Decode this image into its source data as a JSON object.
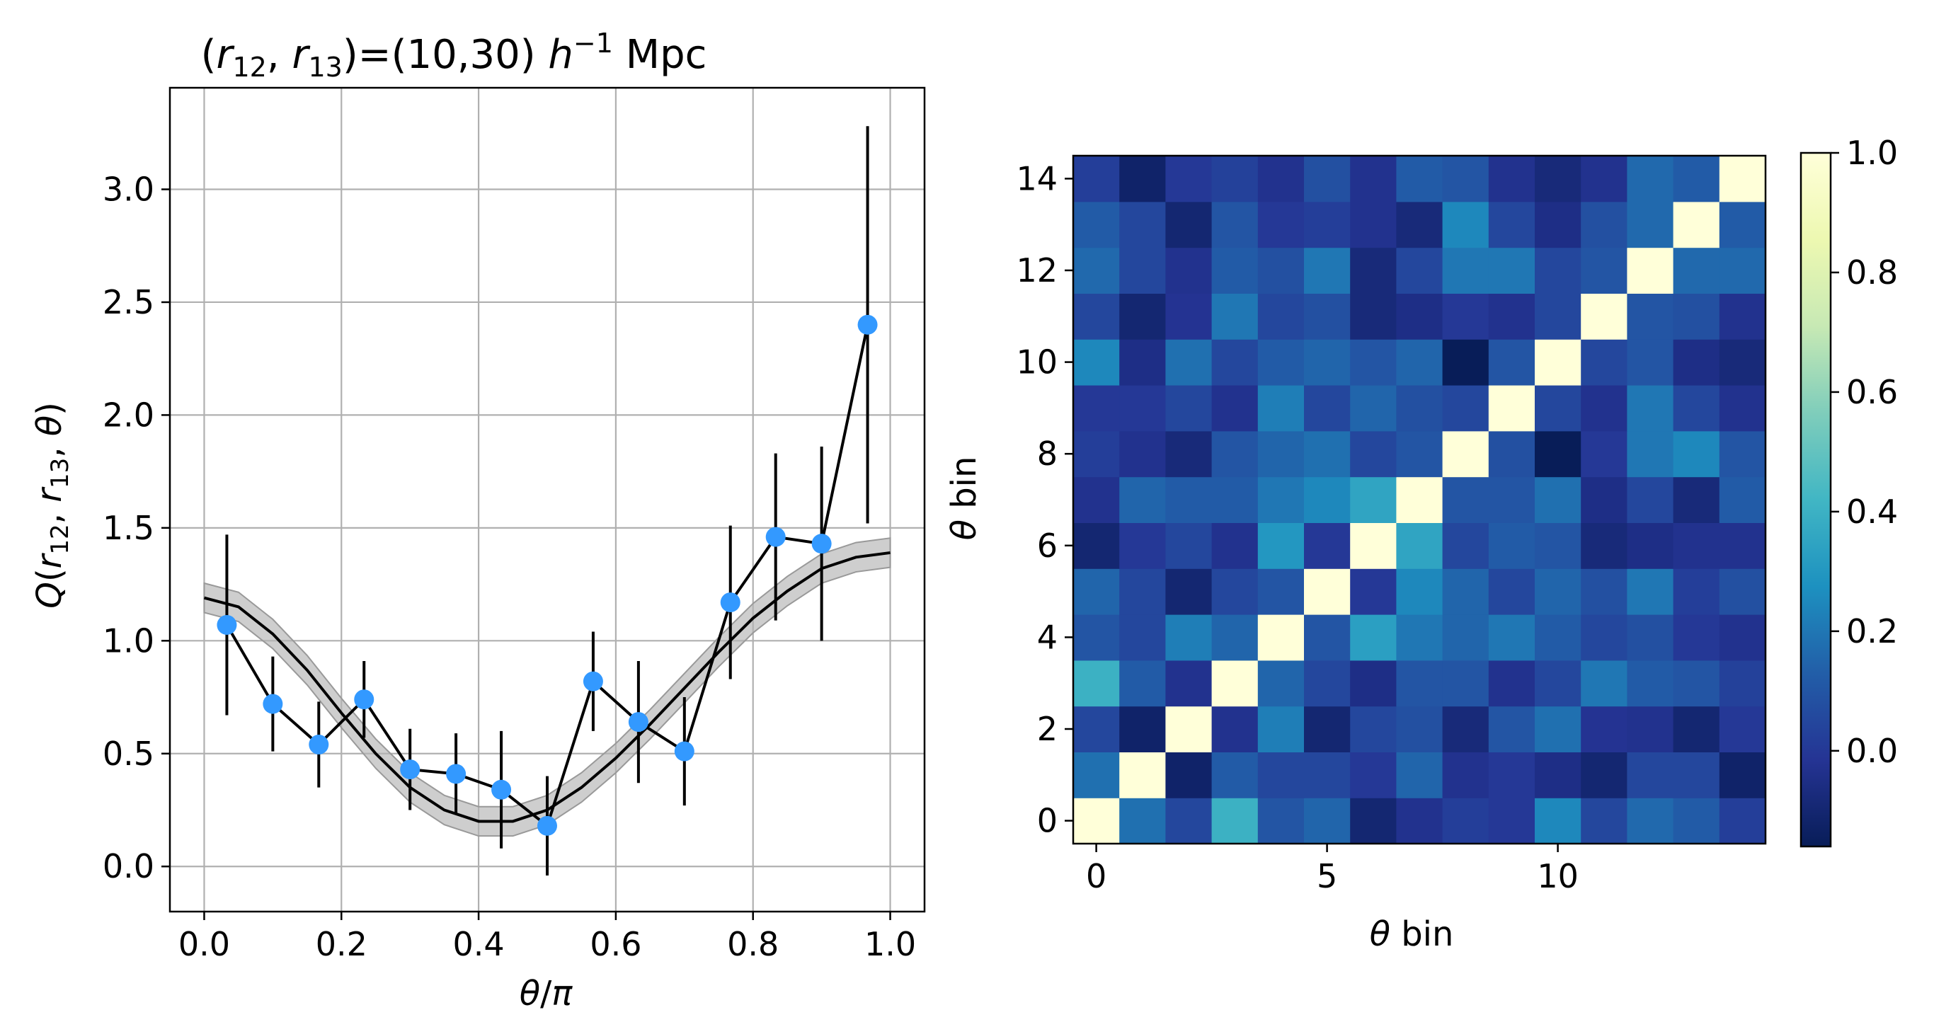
{
  "figure": {
    "colors": {
      "points": "#3399ff",
      "line": "#000000",
      "band": "#b3b3b3",
      "grid": "#b0b0b0",
      "colormap": "YlGnBu_r"
    }
  },
  "chart_data": [
    {
      "type": "line",
      "title": "(r12,r13)=(10,30) h^-1 Mpc",
      "xlabel": "θ/π",
      "ylabel": "Q(r12, r13, θ)",
      "xlim": [
        -0.05,
        1.05
      ],
      "ylim": [
        -0.2,
        3.45
      ],
      "grid": true,
      "xticks": [
        0.0,
        0.2,
        0.4,
        0.6,
        0.8,
        1.0
      ],
      "xtick_labels": [
        "0.0",
        "0.2",
        "0.4",
        "0.6",
        "0.8",
        "1.0"
      ],
      "yticks": [
        0.0,
        0.5,
        1.0,
        1.5,
        2.0,
        2.5,
        3.0
      ],
      "ytick_labels": [
        "0.0",
        "0.5",
        "1.0",
        "1.5",
        "2.0",
        "2.5",
        "3.0"
      ],
      "series": [
        {
          "kind": "points_with_errorbars",
          "x": [
            0.033,
            0.1,
            0.167,
            0.233,
            0.3,
            0.367,
            0.433,
            0.5,
            0.567,
            0.633,
            0.7,
            0.767,
            0.833,
            0.9,
            0.967
          ],
          "y": [
            1.07,
            0.72,
            0.54,
            0.74,
            0.43,
            0.41,
            0.34,
            0.18,
            0.82,
            0.64,
            0.51,
            1.17,
            1.46,
            1.43,
            2.4
          ],
          "yerr": [
            0.4,
            0.21,
            0.19,
            0.17,
            0.18,
            0.18,
            0.26,
            0.22,
            0.22,
            0.27,
            0.24,
            0.34,
            0.37,
            0.43,
            0.88
          ]
        },
        {
          "kind": "model_curve_with_band",
          "x": [
            0.0,
            0.05,
            0.1,
            0.15,
            0.2,
            0.25,
            0.3,
            0.35,
            0.4,
            0.45,
            0.5,
            0.55,
            0.6,
            0.65,
            0.7,
            0.75,
            0.8,
            0.85,
            0.9,
            0.95,
            1.0
          ],
          "y": [
            1.19,
            1.15,
            1.03,
            0.87,
            0.68,
            0.5,
            0.35,
            0.25,
            0.2,
            0.2,
            0.25,
            0.35,
            0.48,
            0.63,
            0.79,
            0.95,
            1.1,
            1.22,
            1.32,
            1.37,
            1.39
          ],
          "band_halfwidth": 0.065
        }
      ]
    },
    {
      "type": "heatmap",
      "xlabel": "θ bin",
      "ylabel": "θ bin",
      "xticks": [
        0,
        5,
        10
      ],
      "xtick_labels": [
        "0",
        "5",
        "10"
      ],
      "yticks": [
        0,
        2,
        4,
        6,
        8,
        10,
        12,
        14
      ],
      "ytick_labels": [
        "0",
        "2",
        "4",
        "6",
        "8",
        "10",
        "12",
        "14"
      ],
      "colorbar": {
        "vmin": -0.16,
        "vmax": 1.0,
        "ticks": [
          0.0,
          0.2,
          0.4,
          0.6,
          0.8,
          1.0
        ],
        "tick_labels": [
          "0.0",
          "0.2",
          "0.4",
          "0.6",
          "0.8",
          "1.0"
        ]
      },
      "rows_bottom_to_top": [
        [
          1.0,
          0.18,
          0.05,
          0.4,
          0.1,
          0.15,
          -0.1,
          -0.03,
          0.02,
          0.0,
          0.25,
          0.05,
          0.16,
          0.12,
          0.02
        ],
        [
          0.18,
          1.0,
          -0.12,
          0.12,
          0.05,
          0.05,
          0.0,
          0.15,
          -0.03,
          0.0,
          -0.05,
          -0.1,
          0.05,
          0.05,
          -0.12
        ],
        [
          0.05,
          -0.12,
          1.0,
          -0.03,
          0.22,
          -0.1,
          0.05,
          0.08,
          -0.08,
          0.1,
          0.18,
          -0.02,
          -0.03,
          -0.1,
          0.0
        ],
        [
          0.4,
          0.12,
          -0.03,
          1.0,
          0.15,
          0.05,
          -0.05,
          0.1,
          0.1,
          -0.03,
          0.05,
          0.2,
          0.12,
          0.1,
          0.03
        ],
        [
          0.1,
          0.05,
          0.22,
          0.15,
          1.0,
          0.1,
          0.33,
          0.2,
          0.15,
          0.2,
          0.12,
          0.05,
          0.08,
          0.0,
          -0.03
        ],
        [
          0.15,
          0.05,
          -0.1,
          0.05,
          0.1,
          1.0,
          0.0,
          0.25,
          0.15,
          0.05,
          0.15,
          0.08,
          0.2,
          0.02,
          0.08
        ],
        [
          -0.1,
          0.0,
          0.05,
          -0.03,
          0.3,
          0.0,
          1.0,
          0.35,
          0.05,
          0.12,
          0.1,
          -0.08,
          -0.05,
          -0.03,
          -0.03
        ],
        [
          -0.03,
          0.15,
          0.12,
          0.12,
          0.2,
          0.25,
          0.35,
          1.0,
          0.1,
          0.1,
          0.18,
          -0.05,
          0.05,
          -0.08,
          0.12
        ],
        [
          0.02,
          -0.03,
          -0.08,
          0.1,
          0.15,
          0.18,
          0.05,
          0.1,
          1.0,
          0.08,
          -0.16,
          0.0,
          0.2,
          0.25,
          0.1
        ],
        [
          0.0,
          0.0,
          0.05,
          -0.03,
          0.22,
          0.05,
          0.15,
          0.08,
          0.05,
          1.0,
          0.05,
          -0.03,
          0.2,
          0.05,
          -0.03
        ],
        [
          0.25,
          -0.05,
          0.18,
          0.05,
          0.12,
          0.15,
          0.1,
          0.15,
          -0.16,
          0.1,
          1.0,
          0.05,
          0.1,
          -0.05,
          -0.08
        ],
        [
          0.05,
          -0.1,
          -0.02,
          0.2,
          0.05,
          0.08,
          -0.08,
          -0.05,
          0.0,
          -0.03,
          0.05,
          1.0,
          0.1,
          0.08,
          -0.03
        ],
        [
          0.16,
          0.05,
          -0.03,
          0.12,
          0.08,
          0.2,
          -0.08,
          0.05,
          0.2,
          0.2,
          0.05,
          0.1,
          1.0,
          0.16,
          0.16
        ],
        [
          0.12,
          0.05,
          -0.1,
          0.1,
          0.0,
          0.02,
          -0.03,
          -0.08,
          0.25,
          0.05,
          -0.05,
          0.08,
          0.16,
          1.0,
          0.12
        ],
        [
          0.02,
          -0.12,
          0.0,
          0.03,
          -0.03,
          0.08,
          -0.03,
          0.12,
          0.1,
          -0.03,
          -0.08,
          -0.03,
          0.16,
          0.12,
          1.0
        ]
      ]
    }
  ]
}
